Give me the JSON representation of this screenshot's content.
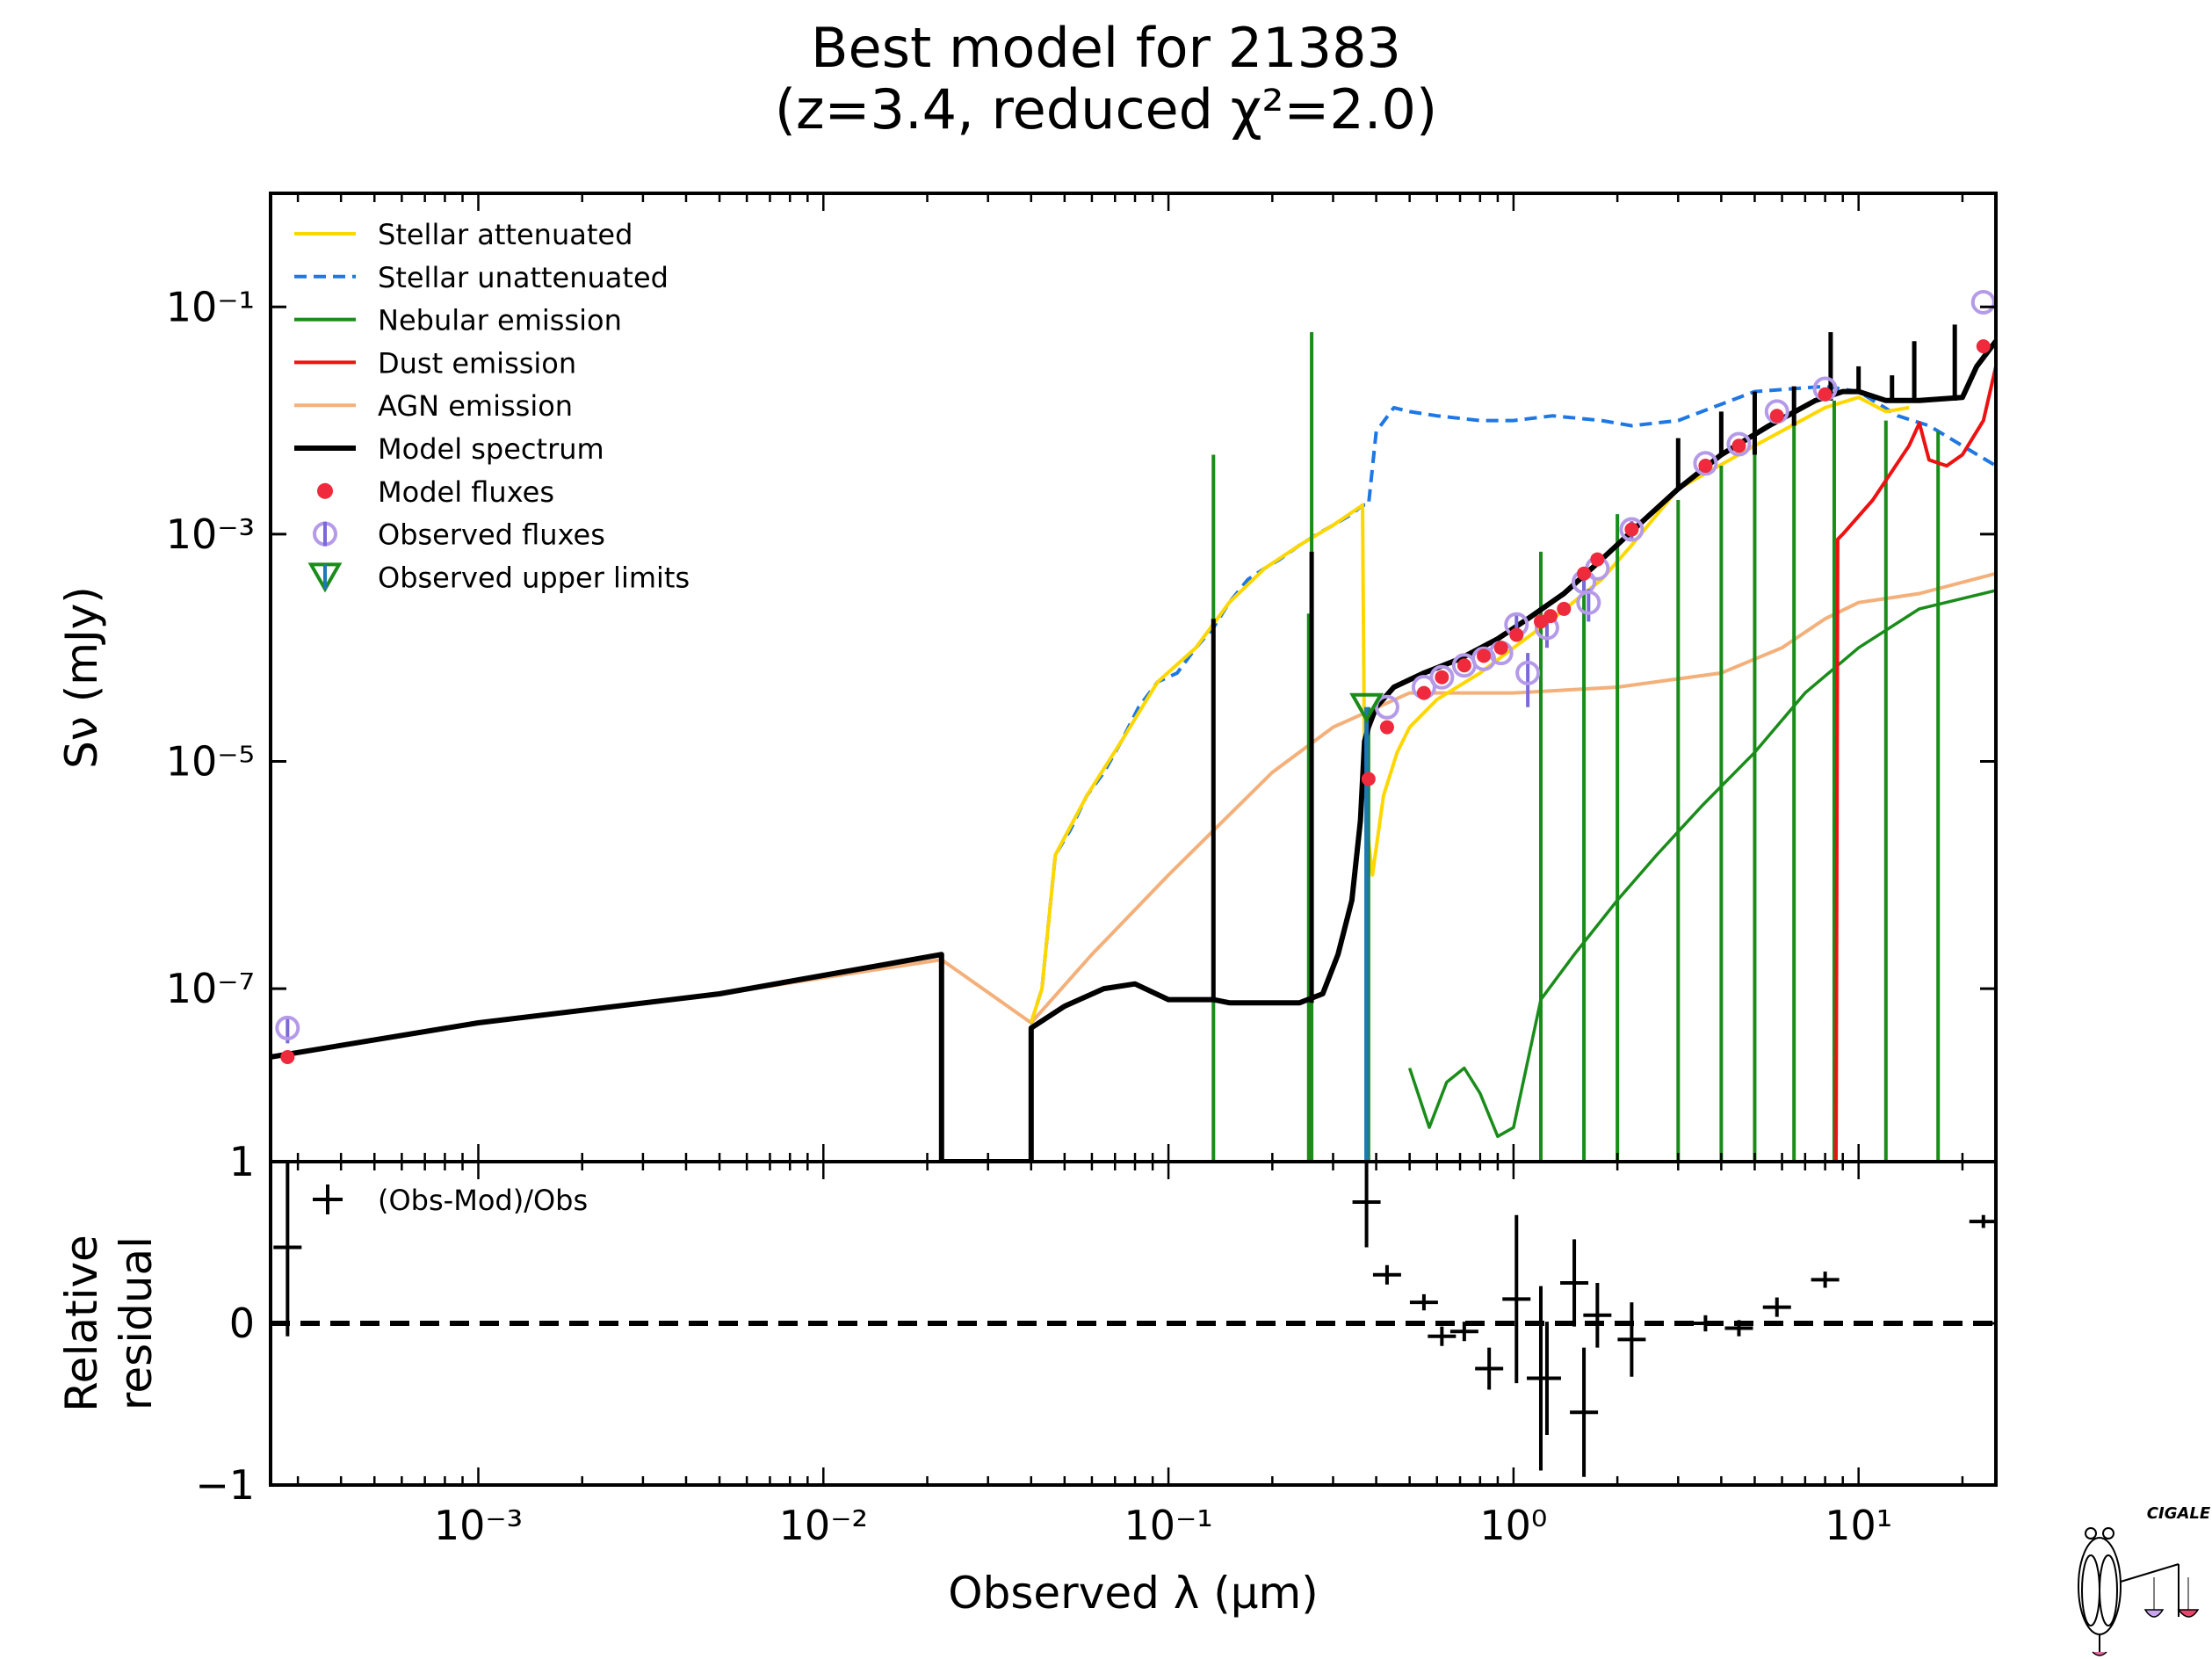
{
  "title": {
    "line1": "Best model for 21383",
    "line2": "(z=3.4, reduced χ²=2.0)"
  },
  "logo_text": "CIGALE",
  "chart_data": [
    {
      "type": "line",
      "panel": "spectrum",
      "ylabel": "Sν (mJy)",
      "xscale": "log",
      "yscale": "log",
      "xlim": [
        0.00025,
        25
      ],
      "ylim": [
        3e-09,
        1
      ],
      "yticks": [
        {
          "value": 0.1,
          "label": "10⁻¹"
        },
        {
          "value": 0.001,
          "label": "10⁻³"
        },
        {
          "value": 1e-05,
          "label": "10⁻⁵"
        },
        {
          "value": 1e-07,
          "label": "10⁻⁷"
        }
      ],
      "legend_position": "upper-left",
      "legend": [
        {
          "label": "Stellar attenuated",
          "color": "#ffd700",
          "style": "solid"
        },
        {
          "label": "Stellar unattenuated",
          "color": "#1f77e4",
          "style": "dashed"
        },
        {
          "label": "Nebular emission",
          "color": "#1a8c1a",
          "style": "solid"
        },
        {
          "label": "Dust emission",
          "color": "#ee1111",
          "style": "solid"
        },
        {
          "label": "AGN emission",
          "color": "#f4b07a",
          "style": "solid"
        },
        {
          "label": "Model spectrum",
          "color": "#000000",
          "style": "solid-thick"
        },
        {
          "label": "Model fluxes",
          "color": "#ee2a3c",
          "style": "dot"
        },
        {
          "label": "Observed fluxes",
          "color": "#b49ae8",
          "style": "open-circle"
        },
        {
          "label": "Observed upper limits",
          "color": "#1a8c1a",
          "style": "triangle-down"
        }
      ],
      "series": [
        {
          "name": "Stellar unattenuated",
          "color": "#1f77e4",
          "x": [
            0.04,
            0.043,
            0.047,
            0.052,
            0.058,
            0.065,
            0.073,
            0.082,
            0.093,
            0.106,
            0.12,
            0.135,
            0.15,
            0.17,
            0.19,
            0.21,
            0.24,
            0.27,
            0.3,
            0.34,
            0.365,
            0.38,
            0.4,
            0.45,
            0.5,
            0.6,
            0.8,
            1.0,
            1.3,
            1.8,
            2.2,
            3.0,
            5.0,
            8.0,
            10,
            13,
            16,
            20,
            25
          ],
          "y": [
            5e-08,
            1e-07,
            1.5e-06,
            2.5e-06,
            5e-06,
            8e-06,
            1.5e-05,
            3e-05,
            5e-05,
            6e-05,
            0.0001,
            0.00015,
            0.00025,
            0.0004,
            0.0005,
            0.0006,
            0.0008,
            0.001,
            0.0012,
            0.0015,
            0.0018,
            0.0018,
            0.008,
            0.013,
            0.012,
            0.011,
            0.01,
            0.01,
            0.011,
            0.01,
            0.009,
            0.01,
            0.018,
            0.02,
            0.018,
            0.011,
            0.009,
            0.006,
            0.004
          ]
        },
        {
          "name": "Stellar attenuated",
          "color": "#ffd700",
          "x": [
            0.04,
            0.043,
            0.047,
            0.058,
            0.073,
            0.093,
            0.12,
            0.15,
            0.19,
            0.24,
            0.3,
            0.365,
            0.37,
            0.38,
            0.39,
            0.42,
            0.46,
            0.5,
            0.6,
            0.8,
            1.0,
            1.3,
            1.8,
            2.2,
            3.0,
            5.0,
            8.0,
            10,
            12,
            14
          ],
          "y": [
            5e-08,
            1e-07,
            1.5e-06,
            5e-06,
            1.5e-05,
            5e-05,
            0.0001,
            0.00025,
            0.0005,
            0.0008,
            0.0012,
            0.0018,
            1e-05,
            2e-06,
            1e-06,
            5e-06,
            1.2e-05,
            2e-05,
            3.5e-05,
            6e-05,
            0.0001,
            0.00018,
            0.0004,
            0.0008,
            0.0025,
            0.006,
            0.013,
            0.016,
            0.012,
            0.013
          ]
        },
        {
          "name": "Nebular emission",
          "color": "#1a8c1a",
          "x": [
            0.5,
            0.57,
            0.64,
            0.72,
            0.8,
            0.9,
            1.0,
            1.2,
            1.5,
            2.0,
            2.6,
            3.5,
            5.0,
            7.0,
            10,
            15,
            25
          ],
          "y": [
            2e-08,
            6e-09,
            1.5e-08,
            2e-08,
            1.2e-08,
            5e-09,
            6e-09,
            8e-08,
            2e-07,
            6e-07,
            1.5e-06,
            4e-06,
            1.2e-05,
            4e-05,
            0.0001,
            0.00022,
            0.00032
          ]
        },
        {
          "name": "Dust emission",
          "color": "#ee1111",
          "x": [
            8.6,
            8.7,
            9.0,
            11,
            14,
            15,
            16,
            18,
            20,
            23,
            25
          ],
          "y": [
            3e-09,
            0.0009,
            0.001,
            0.002,
            0.006,
            0.0095,
            0.0045,
            0.004,
            0.005,
            0.01,
            0.03
          ]
        },
        {
          "name": "AGN emission",
          "color": "#f4b07a",
          "x": [
            0.00025,
            0.0005,
            0.001,
            0.005,
            0.022,
            0.022,
            0.04,
            0.06,
            0.1,
            0.2,
            0.3,
            0.5,
            1.0,
            2.0,
            4.0,
            6.0,
            8.0,
            10,
            15,
            25
          ],
          "y": [
            2.5e-08,
            3.5e-08,
            5e-08,
            9e-08,
            1.8e-07,
            1.8e-07,
            5e-08,
            2e-07,
            1e-06,
            8e-06,
            2e-05,
            4e-05,
            4e-05,
            4.5e-05,
            6e-05,
            0.0001,
            0.00018,
            0.00025,
            0.0003,
            0.00045
          ]
        },
        {
          "name": "Model spectrum",
          "color": "#000000",
          "x": [
            0.00025,
            0.001,
            0.005,
            0.022,
            0.022,
            0.022,
            0.04,
            0.04,
            0.05,
            0.065,
            0.08,
            0.1,
            0.12,
            0.135,
            0.15,
            0.2,
            0.24,
            0.28,
            0.31,
            0.34,
            0.36,
            0.37,
            0.38,
            0.4,
            0.45,
            0.55,
            0.7,
            0.9,
            1.1,
            1.4,
            1.8,
            2.3,
            3.0,
            4.0,
            5.5,
            7.5,
            9.0,
            10,
            12,
            15,
            20,
            22,
            25
          ],
          "y": [
            2.5e-08,
            5e-08,
            9e-08,
            2e-07,
            2e-07,
            3e-09,
            3e-09,
            4.5e-08,
            7e-08,
            1e-07,
            1.1e-07,
            8e-08,
            8e-08,
            8e-08,
            7.5e-08,
            7.5e-08,
            7.5e-08,
            9e-08,
            2e-07,
            6e-07,
            3e-06,
            1.5e-05,
            2e-05,
            3e-05,
            4.5e-05,
            6e-05,
            8e-05,
            0.00012,
            0.00018,
            0.0003,
            0.0006,
            0.0012,
            0.0025,
            0.005,
            0.009,
            0.015,
            0.018,
            0.018,
            0.015,
            0.015,
            0.016,
            0.03,
            0.05
          ]
        },
        {
          "name": "Model fluxes",
          "color": "#ee2a3c",
          "x": [
            0.00028,
            0.38,
            0.43,
            0.55,
            0.62,
            0.72,
            0.82,
            0.92,
            1.02,
            1.2,
            1.28,
            1.4,
            1.6,
            1.75,
            2.2,
            3.6,
            4.5,
            5.8,
            8.0,
            23.0
          ],
          "y": [
            2.5e-08,
            7e-06,
            2e-05,
            4e-05,
            5.5e-05,
            7e-05,
            8.5e-05,
            0.0001,
            0.00013,
            0.00017,
            0.00019,
            0.00022,
            0.00045,
            0.0006,
            0.0011,
            0.004,
            0.006,
            0.011,
            0.017,
            0.045
          ]
        },
        {
          "name": "Observed fluxes",
          "color": "#b49ae8",
          "x": [
            0.00028,
            0.43,
            0.55,
            0.62,
            0.72,
            0.82,
            0.92,
            1.02,
            1.1,
            1.25,
            1.6,
            1.65,
            1.75,
            2.2,
            3.6,
            4.5,
            5.8,
            8.0,
            23.0
          ],
          "y": [
            4.5e-08,
            3e-05,
            4.5e-05,
            5.5e-05,
            7e-05,
            8e-05,
            9e-05,
            0.00016,
            6e-05,
            0.00015,
            0.00038,
            0.00025,
            0.0005,
            0.0011,
            0.0042,
            0.0062,
            0.012,
            0.019,
            0.11
          ],
          "yerr_low": [
            1.2e-08,
            0,
            0,
            0,
            0,
            0,
            0,
            4e-05,
            3e-05,
            5e-05,
            8e-05,
            8e-05,
            0,
            0.0002,
            0,
            0,
            0,
            0,
            0
          ]
        },
        {
          "name": "Observed upper limits",
          "color": "#1a8c1a",
          "x": [
            0.375
          ],
          "y": [
            3e-05
          ]
        }
      ],
      "emission_lines": {
        "nebular": [
          {
            "x": 0.135,
            "y": 0.005
          },
          {
            "x": 0.26,
            "y": 0.06
          },
          {
            "x": 0.255,
            "y": 0.0002
          },
          {
            "x": 0.38,
            "y": 3e-05
          },
          {
            "x": 1.2,
            "y": 0.0007
          },
          {
            "x": 1.6,
            "y": 0.0005
          },
          {
            "x": 2.0,
            "y": 0.0015
          },
          {
            "x": 3.0,
            "y": 0.002
          },
          {
            "x": 4.0,
            "y": 0.004
          },
          {
            "x": 5.0,
            "y": 0.008
          },
          {
            "x": 6.5,
            "y": 0.012
          },
          {
            "x": 8.5,
            "y": 0.015
          },
          {
            "x": 12.0,
            "y": 0.01
          },
          {
            "x": 17.0,
            "y": 0.008
          }
        ],
        "model": [
          {
            "x": 0.135,
            "y": 0.00018
          },
          {
            "x": 0.26,
            "y": 0.0007
          },
          {
            "x": 3.0,
            "y": 0.007
          },
          {
            "x": 4.0,
            "y": 0.012
          },
          {
            "x": 5.0,
            "y": 0.018
          },
          {
            "x": 6.5,
            "y": 0.02
          },
          {
            "x": 8.3,
            "y": 0.06
          },
          {
            "x": 10.0,
            "y": 0.03
          },
          {
            "x": 12.5,
            "y": 0.025
          },
          {
            "x": 14.5,
            "y": 0.05
          },
          {
            "x": 19.0,
            "y": 0.07
          }
        ]
      }
    },
    {
      "type": "scatter",
      "panel": "residual",
      "ylabel": "Relative\nresidual",
      "xlabel": "Observed λ (μm)",
      "xscale": "log",
      "xlim": [
        0.00025,
        25
      ],
      "ylim": [
        -1,
        1
      ],
      "yticks": [
        {
          "value": 1,
          "label": "1"
        },
        {
          "value": 0,
          "label": "0"
        },
        {
          "value": -1,
          "label": "−1"
        }
      ],
      "xticks": [
        {
          "value": 0.001,
          "label": "10⁻³"
        },
        {
          "value": 0.01,
          "label": "10⁻²"
        },
        {
          "value": 0.1,
          "label": "10⁻¹"
        },
        {
          "value": 1,
          "label": "10⁰"
        },
        {
          "value": 10,
          "label": "10¹"
        }
      ],
      "legend": [
        {
          "label": "(Obs-Mod)/Obs",
          "marker": "+"
        }
      ],
      "legend_position": "upper-left",
      "series": [
        {
          "name": "(Obs-Mod)/Obs",
          "x": [
            0.00028,
            0.375,
            0.43,
            0.55,
            0.62,
            0.72,
            0.85,
            1.02,
            1.2,
            1.25,
            1.5,
            1.6,
            1.75,
            2.2,
            3.6,
            4.5,
            5.8,
            8.0,
            23.0
          ],
          "y": [
            0.47,
            0.75,
            0.3,
            0.13,
            -0.08,
            -0.05,
            -0.28,
            0.15,
            -0.34,
            -0.34,
            0.25,
            -0.55,
            0.05,
            -0.1,
            0.0,
            -0.03,
            0.1,
            0.27,
            0.63
          ],
          "yerr": [
            0.55,
            0.28,
            0.06,
            0.05,
            0.06,
            0.06,
            0.13,
            0.52,
            0.57,
            0.35,
            0.27,
            0.4,
            0.2,
            0.23,
            0.05,
            0.05,
            0.06,
            0.05,
            0.04
          ]
        }
      ]
    }
  ]
}
